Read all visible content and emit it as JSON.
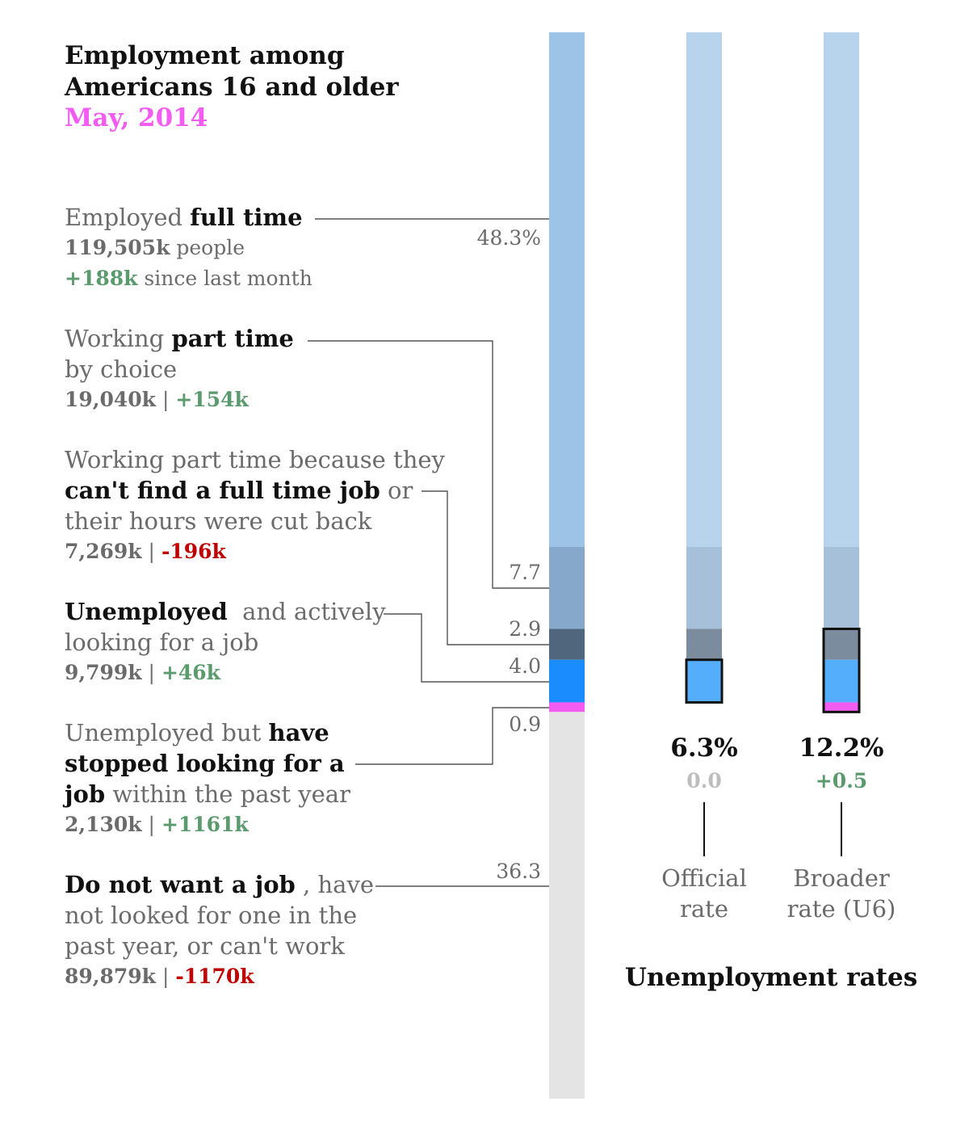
{
  "title": "Employment among Americans 16 and older",
  "subtitle": "May, 2014",
  "categories": [
    {
      "pre": "Employed ",
      "bold": "full time",
      "post": "",
      "line2": "",
      "count": "119,505k",
      "count_suffix": " people",
      "change": "+188k",
      "change_suffix": " since last month"
    },
    {
      "pre": "Working ",
      "bold": "part time",
      "post": "",
      "line2": "by choice",
      "count": "19,040k",
      "change": "+154k"
    },
    {
      "pre": "Working part time because they",
      "bold": "can't find a full time job",
      "post": " or",
      "line2": "their hours were cut back",
      "count": "7,269k",
      "change": "-196k"
    },
    {
      "pre": "",
      "bold": "Unemployed",
      "post": "  and actively",
      "line2": "looking for a job",
      "count": "9,799k",
      "change": "+46k"
    },
    {
      "pre": "Unemployed but ",
      "bold": "have",
      "bold2": "stopped looking for a",
      "bold3": "job",
      "post": " within the past year",
      "count": "2,130k",
      "change": "+1161k"
    },
    {
      "pre": "",
      "bold": "Do not want a job",
      "post": " , have",
      "line2": "not looked for one in the",
      "line3": "past year, or can't work",
      "count": "89,879k",
      "change": "-1170k"
    }
  ],
  "separator": " | ",
  "chart_data": {
    "type": "stacked-bar",
    "unit": "%",
    "segments": [
      {
        "name": "Employed full time",
        "value": 48.3,
        "label": "48.3%",
        "color": "#9dc3e6"
      },
      {
        "name": "Working part time by choice",
        "value": 7.7,
        "label": "7.7",
        "color": "#86a9cb"
      },
      {
        "name": "Part time for economic reasons",
        "value": 2.9,
        "label": "2.9",
        "color": "#4f667c"
      },
      {
        "name": "Unemployed and actively looking",
        "value": 4.0,
        "label": "4.0",
        "color": "#1b8cfd"
      },
      {
        "name": "Stopped looking within past year",
        "value": 0.9,
        "label": "0.9",
        "color": "#f35cf0"
      },
      {
        "name": "Do not want a job",
        "value": 36.3,
        "label": "36.3",
        "color": "#e4e4e4"
      }
    ],
    "rates": [
      {
        "name": "Official rate",
        "value": 6.3,
        "label": "6.3%",
        "change": "0.0",
        "change_color": "#bdbdbd",
        "line1": "Official",
        "line2": "rate",
        "includes": [
          3
        ]
      },
      {
        "name": "Broader rate (U6)",
        "value": 12.2,
        "label": "12.2%",
        "change": "+0.5",
        "change_color": "#5a9a6d",
        "line1": "Broader",
        "line2": "rate (U6)",
        "includes": [
          2,
          3,
          4
        ]
      }
    ],
    "rates_title": "Unemployment rates"
  },
  "colors": {
    "positive": "#5a9a6d",
    "negative": "#c00000",
    "accent": "#f35cf0"
  }
}
